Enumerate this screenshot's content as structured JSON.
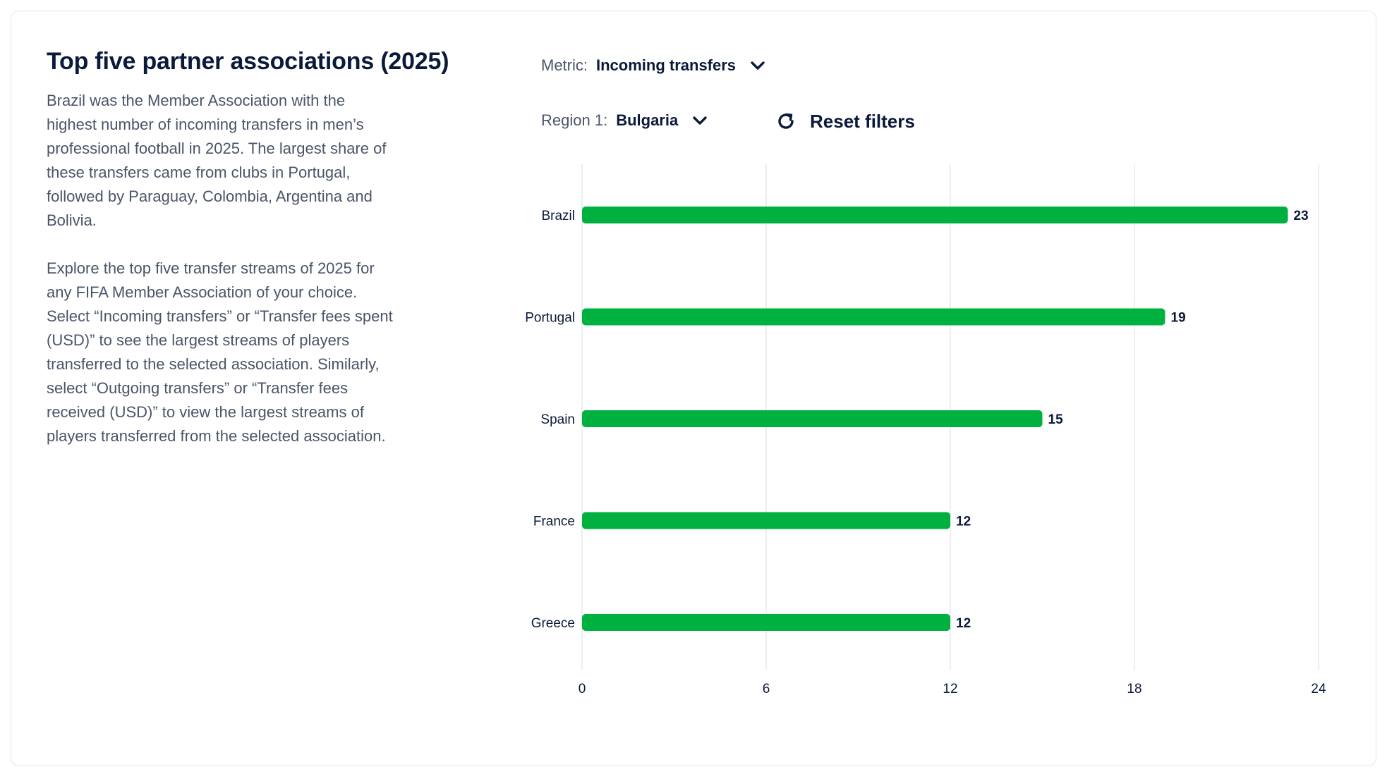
{
  "header": {
    "title": "Top five partner associations (2025)"
  },
  "description": {
    "paragraph_1": "Brazil was the Member Association with the highest number of incoming transfers in men’s professional football in 2025. The largest share of these transfers came from clubs in Portugal, followed by Paraguay, Colombia, Argentina and Bolivia.",
    "paragraph_2": "Explore the top five transfer streams of 2025 for any FIFA Member Association of your choice. Select “Incoming transfers” or “Transfer fees spent (USD)” to see the largest streams of players transferred to the selected association. Similarly, select “Outgoing transfers” or “Transfer fees received (USD)” to view the largest streams of players transferred from the selected association."
  },
  "controls": {
    "metric_label": "Metric:",
    "metric_value": "Incoming transfers",
    "region_label": "Region 1:",
    "region_value": "Bulgaria",
    "reset_label": "Reset filters"
  },
  "colors": {
    "bar": "#00b140",
    "text": "#0b1a3a",
    "grid": "#e6e8eb"
  },
  "chart_data": {
    "type": "bar",
    "orientation": "horizontal",
    "categories": [
      "Brazil",
      "Portugal",
      "Spain",
      "France",
      "Greece"
    ],
    "values": [
      23,
      19,
      15,
      12,
      12
    ],
    "xlim": [
      0,
      24
    ],
    "xticks": [
      0,
      6,
      12,
      18,
      24
    ],
    "grid": true,
    "data_labels": true
  }
}
